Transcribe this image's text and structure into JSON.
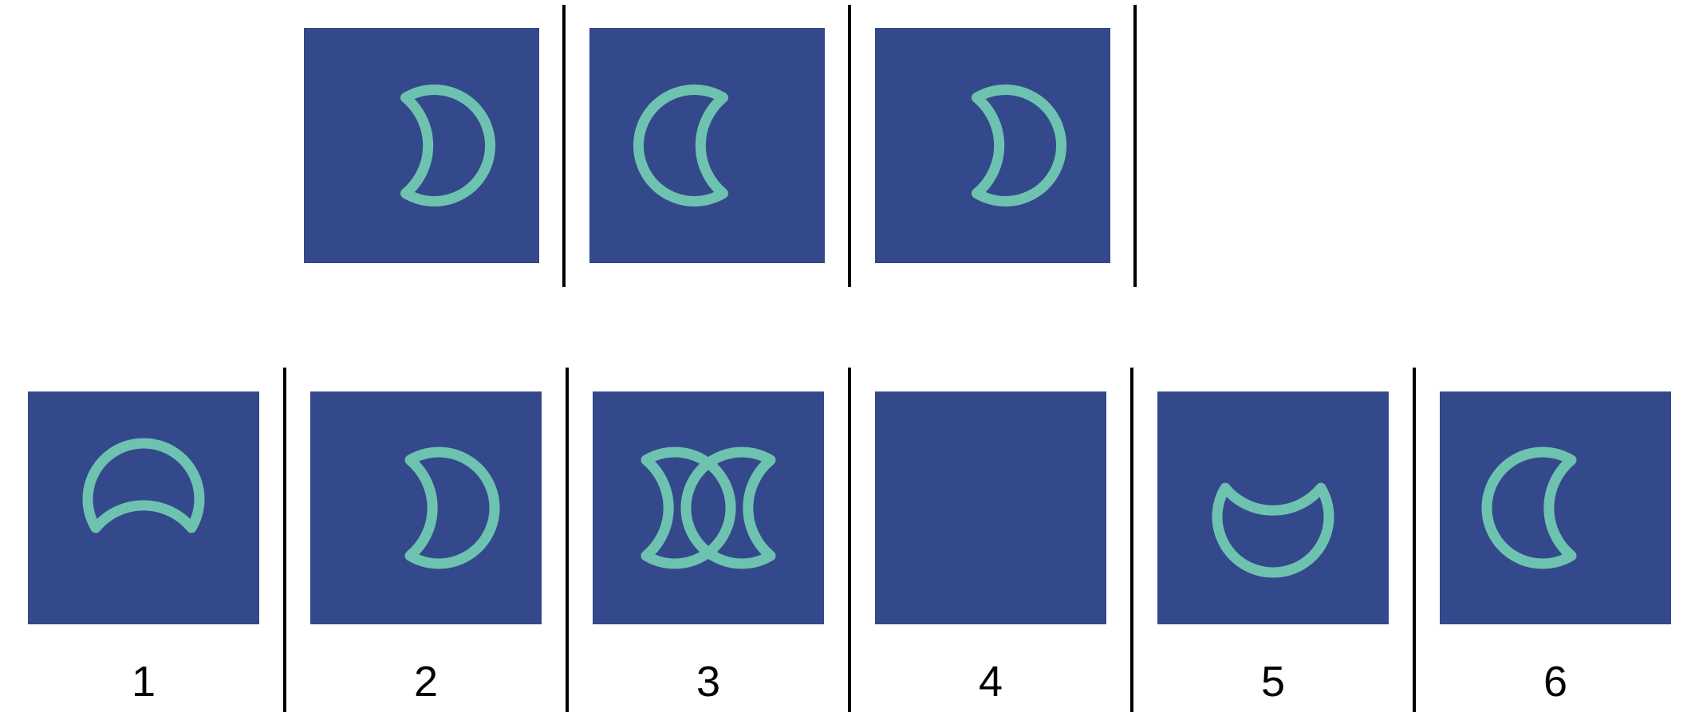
{
  "colors": {
    "tile_background": "#34498b",
    "symbol_stroke": "#6ec3b0",
    "divider": "#000000",
    "page_background": "#ffffff"
  },
  "sequence": [
    {
      "symbol": "crescent-open-left-icon"
    },
    {
      "symbol": "crescent-open-right-icon"
    },
    {
      "symbol": "crescent-open-left-icon"
    }
  ],
  "options": [
    {
      "label": "1",
      "symbol": "crescent-open-down-icon"
    },
    {
      "label": "2",
      "symbol": "crescent-open-left-icon"
    },
    {
      "label": "3",
      "symbol": "double-crescent-icon"
    },
    {
      "label": "4",
      "symbol": "none"
    },
    {
      "label": "5",
      "symbol": "crescent-open-up-icon"
    },
    {
      "label": "6",
      "symbol": "crescent-open-right-icon"
    }
  ]
}
